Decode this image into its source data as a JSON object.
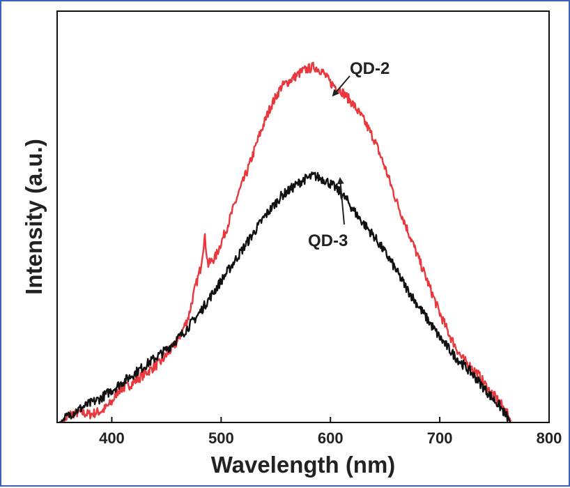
{
  "chart_data": {
    "type": "line",
    "xlabel": "Wavelength (nm)",
    "ylabel": "Intensity (a.u.)",
    "xlim": [
      350,
      800
    ],
    "ylim": [
      0,
      1.0
    ],
    "x_ticks": [
      400,
      500,
      600,
      700,
      800
    ],
    "y_ticks_shown": false,
    "grid": false,
    "legend": "none",
    "series": [
      {
        "name": "QD-2",
        "color": "#e8383d",
        "points": [
          [
            355,
            0.0
          ],
          [
            362,
            0.02
          ],
          [
            370,
            0.025
          ],
          [
            380,
            0.02
          ],
          [
            392,
            0.03
          ],
          [
            400,
            0.05
          ],
          [
            406,
            0.08
          ],
          [
            415,
            0.09
          ],
          [
            430,
            0.12
          ],
          [
            445,
            0.15
          ],
          [
            460,
            0.2
          ],
          [
            470,
            0.26
          ],
          [
            476,
            0.33
          ],
          [
            481,
            0.38
          ],
          [
            485,
            0.46
          ],
          [
            488,
            0.39
          ],
          [
            495,
            0.41
          ],
          [
            505,
            0.48
          ],
          [
            515,
            0.56
          ],
          [
            525,
            0.63
          ],
          [
            535,
            0.71
          ],
          [
            545,
            0.78
          ],
          [
            555,
            0.83
          ],
          [
            565,
            0.85
          ],
          [
            575,
            0.87
          ],
          [
            585,
            0.88
          ],
          [
            592,
            0.87
          ],
          [
            600,
            0.84
          ],
          [
            610,
            0.82
          ],
          [
            620,
            0.79
          ],
          [
            630,
            0.75
          ],
          [
            640,
            0.7
          ],
          [
            650,
            0.63
          ],
          [
            660,
            0.55
          ],
          [
            670,
            0.48
          ],
          [
            680,
            0.41
          ],
          [
            690,
            0.34
          ],
          [
            700,
            0.27
          ],
          [
            710,
            0.21
          ],
          [
            720,
            0.16
          ],
          [
            735,
            0.12
          ],
          [
            745,
            0.08
          ],
          [
            755,
            0.05
          ],
          [
            762,
            0.02
          ],
          [
            766,
            0.0
          ]
        ]
      },
      {
        "name": "QD-3",
        "color": "#111111",
        "points": [
          [
            352,
            0.0
          ],
          [
            362,
            0.02
          ],
          [
            375,
            0.04
          ],
          [
            390,
            0.06
          ],
          [
            405,
            0.09
          ],
          [
            420,
            0.12
          ],
          [
            435,
            0.15
          ],
          [
            450,
            0.18
          ],
          [
            465,
            0.22
          ],
          [
            480,
            0.27
          ],
          [
            495,
            0.33
          ],
          [
            510,
            0.39
          ],
          [
            525,
            0.45
          ],
          [
            540,
            0.51
          ],
          [
            555,
            0.56
          ],
          [
            565,
            0.58
          ],
          [
            575,
            0.6
          ],
          [
            585,
            0.61
          ],
          [
            595,
            0.6
          ],
          [
            605,
            0.58
          ],
          [
            615,
            0.55
          ],
          [
            625,
            0.51
          ],
          [
            640,
            0.46
          ],
          [
            655,
            0.4
          ],
          [
            670,
            0.33
          ],
          [
            685,
            0.27
          ],
          [
            700,
            0.21
          ],
          [
            715,
            0.16
          ],
          [
            730,
            0.12
          ],
          [
            745,
            0.07
          ],
          [
            755,
            0.04
          ],
          [
            765,
            0.0
          ]
        ]
      }
    ],
    "annotations": [
      {
        "text": "QD-2",
        "series": "QD-2",
        "at_x": 597
      },
      {
        "text": "QD-3",
        "series": "QD-3",
        "at_x": 610
      }
    ]
  }
}
